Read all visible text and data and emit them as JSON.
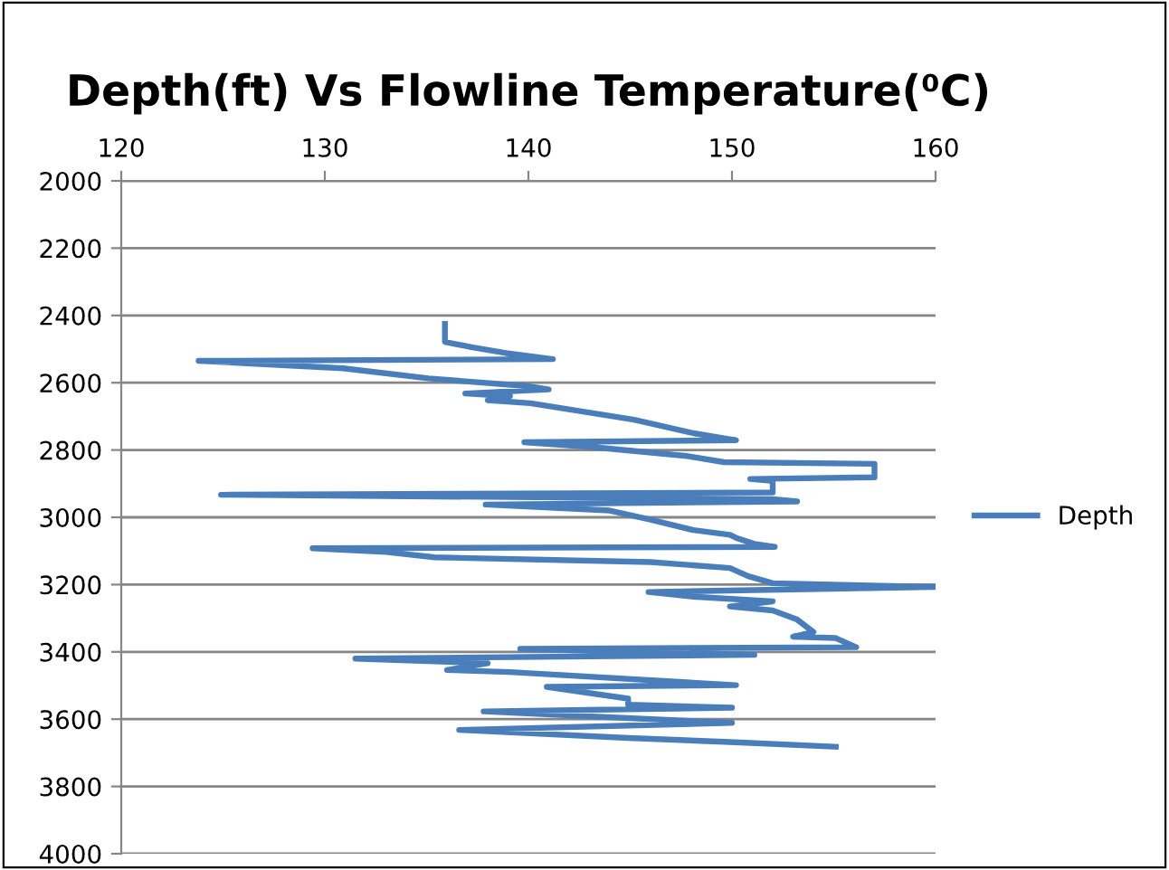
{
  "chart_data": {
    "type": "line",
    "title": "Depth(ft) Vs Flowline Temperature(⁰C)",
    "series": [
      {
        "name": "Depth",
        "color": "#4a7ebb",
        "x": [
          135.9,
          135.9,
          137.2,
          138.9,
          141.2,
          123.8,
          130.9,
          135.1,
          140.1,
          141.0,
          136.9,
          139.1,
          138.0,
          140.1,
          145.2,
          148.1,
          150.2,
          139.8,
          143.1,
          147.8,
          149.6,
          157.0,
          157.0,
          150.9,
          152.0,
          152.0,
          124.9,
          152.0,
          153.2,
          137.9,
          144.0,
          146.0,
          148.1,
          149.9,
          150.2,
          151.1,
          152.1,
          129.4,
          133.0,
          135.4,
          146.0,
          149.9,
          150.8,
          152.0,
          160.0,
          145.9,
          148.1,
          152.0,
          149.9,
          152.0,
          153.2,
          154.0,
          153.0,
          155.1,
          156.1,
          139.6,
          151.1,
          131.5,
          138.0,
          136.0,
          139.1,
          150.2,
          140.9,
          144.9,
          144.9,
          150.0,
          137.8,
          150.0,
          136.6,
          144.9,
          149.9,
          155.1
        ],
        "values": [
          2425,
          2479,
          2494,
          2512,
          2530,
          2535,
          2557,
          2587,
          2611,
          2620,
          2632,
          2640,
          2652,
          2661,
          2710,
          2750,
          2771,
          2777,
          2791,
          2818,
          2836,
          2841,
          2881,
          2886,
          2892,
          2926,
          2933,
          2946,
          2953,
          2962,
          2980,
          3007,
          3038,
          3052,
          3061,
          3079,
          3088,
          3092,
          3103,
          3119,
          3133,
          3151,
          3175,
          3196,
          3207,
          3222,
          3236,
          3250,
          3265,
          3277,
          3304,
          3341,
          3355,
          3359,
          3386,
          3391,
          3409,
          3420,
          3434,
          3454,
          3460,
          3499,
          3504,
          3539,
          3557,
          3566,
          3577,
          3611,
          3632,
          3656,
          3668,
          3682
        ]
      }
    ],
    "xlim": [
      120,
      160
    ],
    "xticks": [
      120,
      130,
      140,
      150,
      160
    ],
    "ylim": [
      4000,
      2000
    ],
    "yticks": [
      2000,
      2200,
      2400,
      2600,
      2800,
      3000,
      3200,
      3400,
      3600,
      3800,
      4000
    ],
    "grid": "y",
    "legend": "right",
    "marker": "none",
    "line_style": "solid"
  }
}
